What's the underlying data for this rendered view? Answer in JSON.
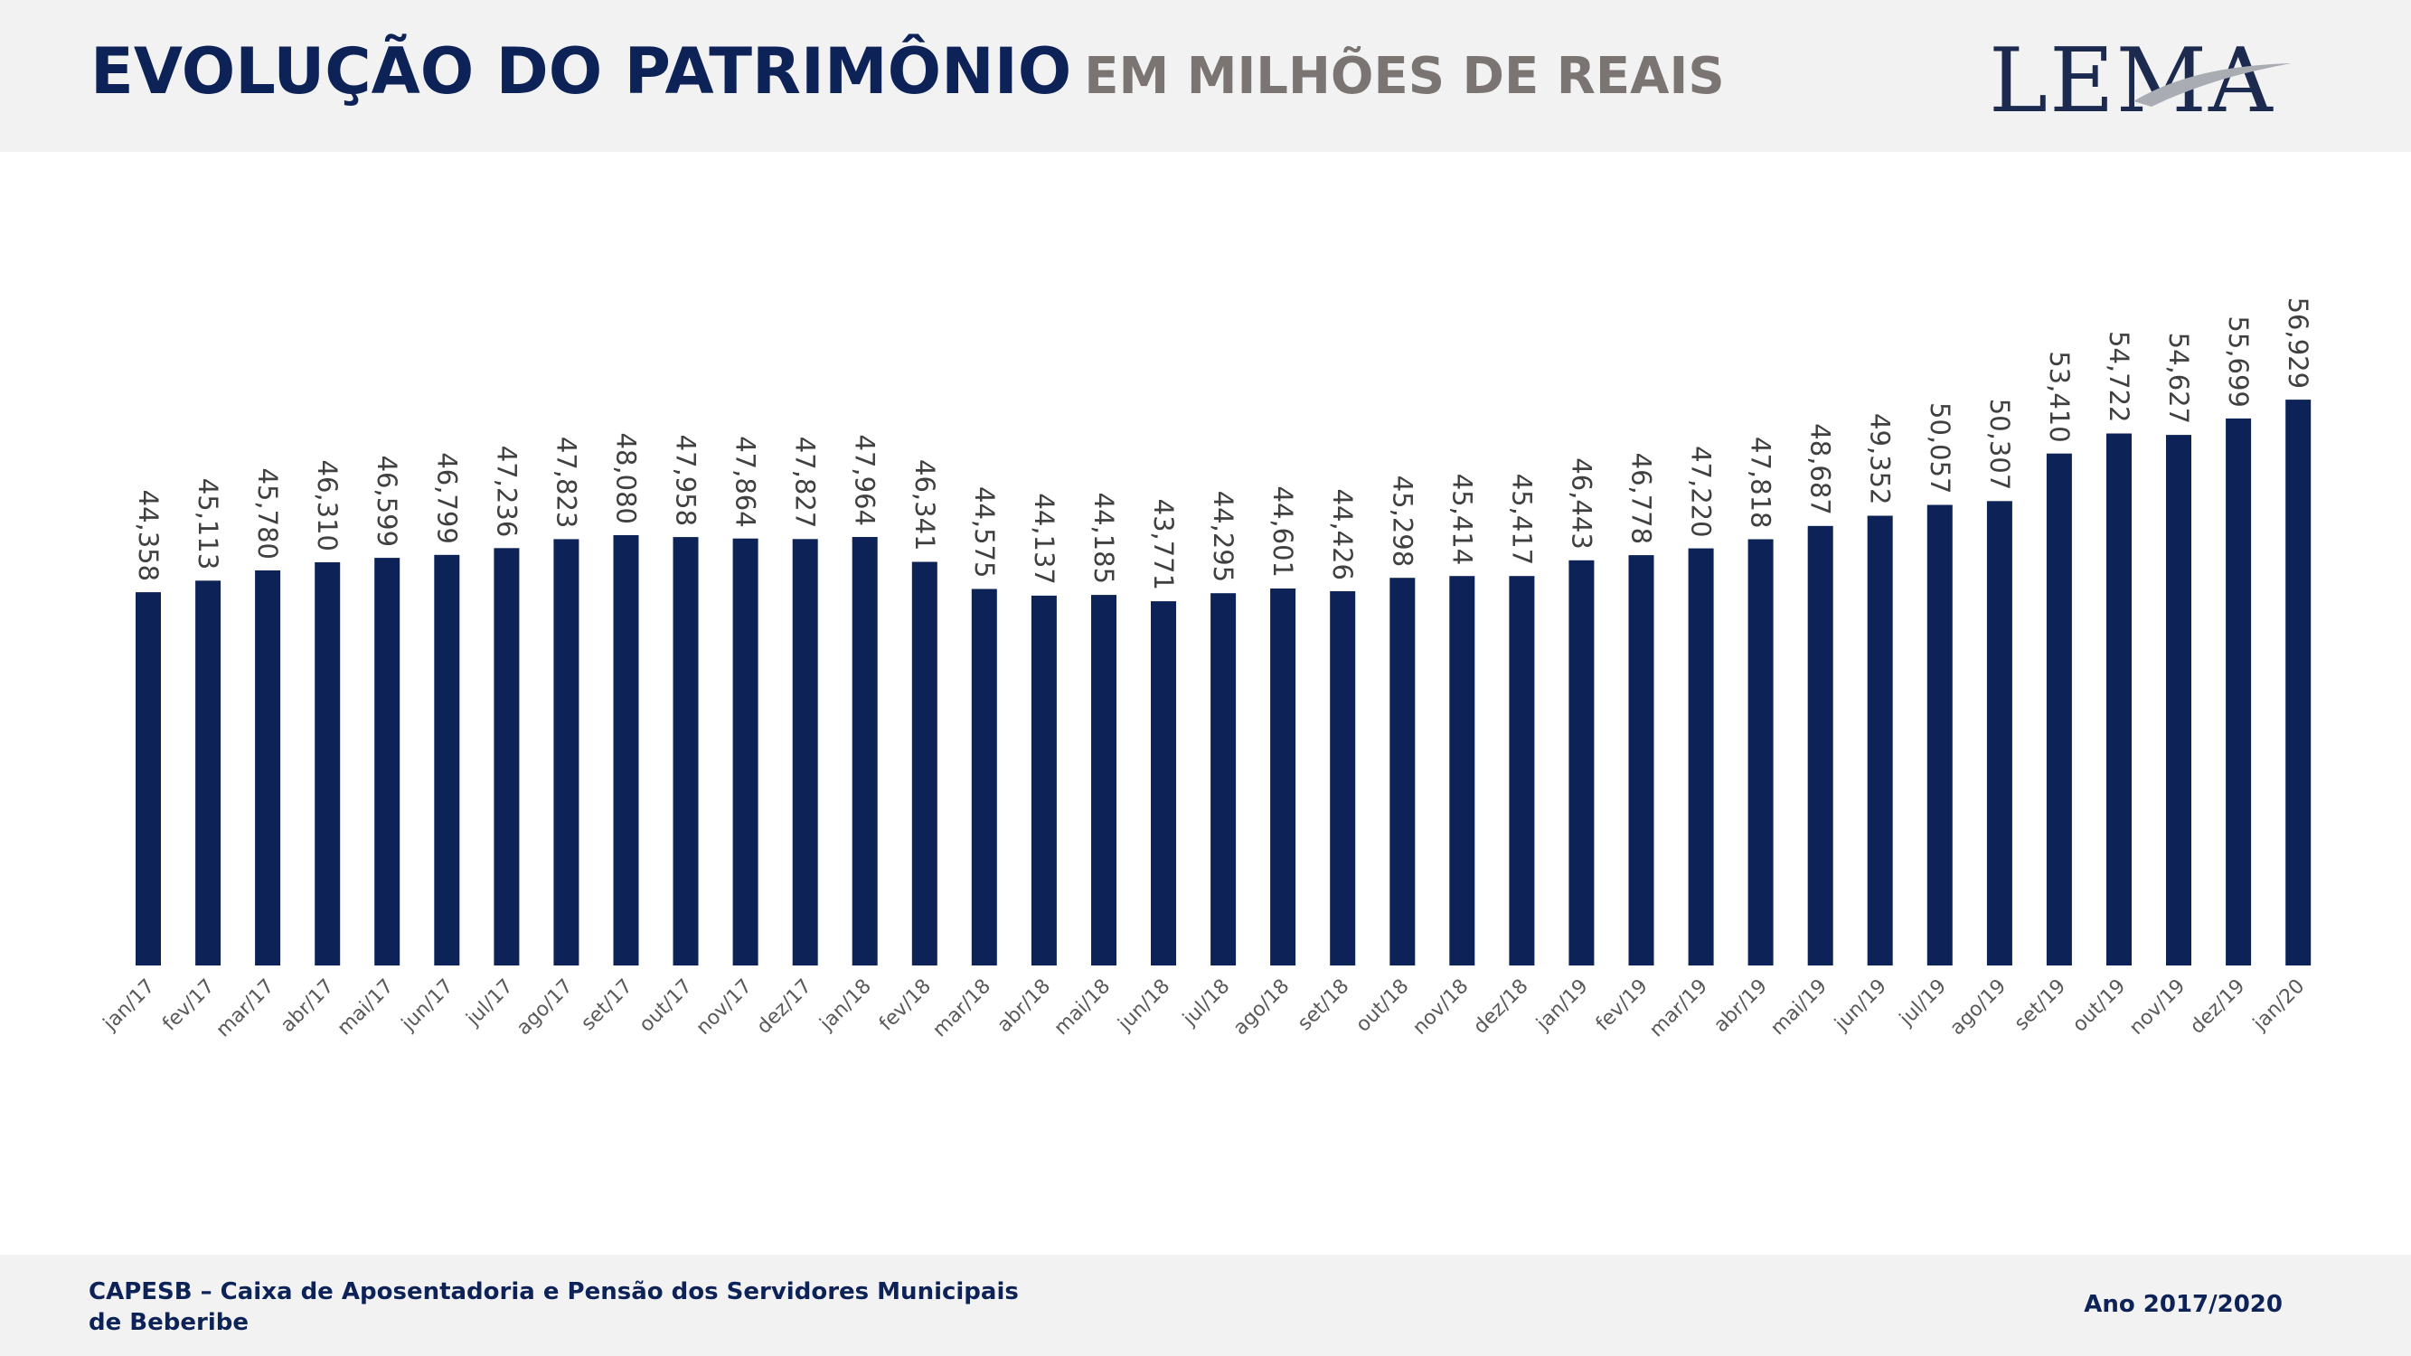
{
  "header": {
    "title": "EVOLUÇÃO DO PATRIMÔNIO",
    "subtitle": "EM MILHÕES DE REAIS",
    "logo_text": "LEMA"
  },
  "footer": {
    "left": "CAPESB – Caixa de Aposentadoria e Pensão dos Servidores Municipais de Beberibe",
    "right": "Ano 2017/2020"
  },
  "colors": {
    "bar": "#0d2358",
    "title": "#0d2358",
    "subtitle": "#7a7472",
    "label": "#404040",
    "tick": "#595959"
  },
  "chart_data": {
    "type": "bar",
    "title": "EVOLUÇÃO DO PATRIMÔNIO EM MILHÕES DE REAIS",
    "xlabel": "",
    "ylabel": "",
    "grid": false,
    "ylim": [
      20,
      60
    ],
    "categories": [
      "jan/17",
      "fev/17",
      "mar/17",
      "abr/17",
      "mai/17",
      "jun/17",
      "jul/17",
      "ago/17",
      "set/17",
      "out/17",
      "nov/17",
      "dez/17",
      "jan/18",
      "fev/18",
      "mar/18",
      "abr/18",
      "mai/18",
      "jun/18",
      "jul/18",
      "ago/18",
      "set/18",
      "out/18",
      "nov/18",
      "dez/18",
      "jan/19",
      "fev/19",
      "mar/19",
      "abr/19",
      "mai/19",
      "jun/19",
      "jul/19",
      "ago/19",
      "set/19",
      "out/19",
      "nov/19",
      "dez/19",
      "jan/20"
    ],
    "values": [
      44.358,
      45.113,
      45.78,
      46.31,
      46.599,
      46.799,
      47.236,
      47.823,
      48.08,
      47.958,
      47.864,
      47.827,
      47.964,
      46.341,
      44.575,
      44.137,
      44.185,
      43.771,
      44.295,
      44.601,
      44.426,
      45.298,
      45.414,
      45.417,
      46.443,
      46.778,
      47.22,
      47.818,
      48.687,
      49.352,
      50.057,
      50.307,
      53.41,
      54.722,
      54.627,
      55.699,
      56.929
    ],
    "labels": [
      "44,358",
      "45,113",
      "45,780",
      "46,310",
      "46,599",
      "46,799",
      "47,236",
      "47,823",
      "48,080",
      "47,958",
      "47,864",
      "47,827",
      "47,964",
      "46,341",
      "44,575",
      "44,137",
      "44,185",
      "43,771",
      "44,295",
      "44,601",
      "44,426",
      "45,298",
      "45,414",
      "45,417",
      "46,443",
      "46,778",
      "47,220",
      "47,818",
      "48,687",
      "49,352",
      "50,057",
      "50,307",
      "53,410",
      "54,722",
      "54,627",
      "55,699",
      "56,929"
    ]
  }
}
